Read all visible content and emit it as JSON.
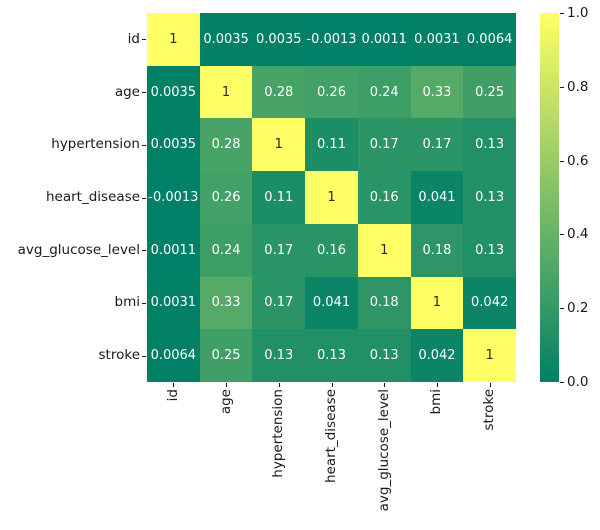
{
  "chart_data": {
    "type": "heatmap",
    "title": "",
    "xlabel": "",
    "ylabel": "",
    "labels": [
      "id",
      "age",
      "hypertension",
      "heart_disease",
      "avg_glucose_level",
      "bmi",
      "stroke"
    ],
    "matrix": [
      [
        1,
        0.0035,
        0.0035,
        -0.0013,
        0.0011,
        0.0031,
        0.0064
      ],
      [
        0.0035,
        1,
        0.28,
        0.26,
        0.24,
        0.33,
        0.25
      ],
      [
        0.0035,
        0.28,
        1,
        0.11,
        0.17,
        0.17,
        0.13
      ],
      [
        -0.0013,
        0.26,
        0.11,
        1,
        0.16,
        0.041,
        0.13
      ],
      [
        0.0011,
        0.24,
        0.17,
        0.16,
        1,
        0.18,
        0.13
      ],
      [
        0.0031,
        0.33,
        0.17,
        0.041,
        0.18,
        1,
        0.042
      ],
      [
        0.0064,
        0.25,
        0.13,
        0.13,
        0.13,
        0.042,
        1
      ]
    ],
    "annotations": [
      [
        "1",
        "0.0035",
        "0.0035",
        "-0.0013",
        "0.0011",
        "0.0031",
        "0.0064"
      ],
      [
        "0.0035",
        "1",
        "0.28",
        "0.26",
        "0.24",
        "0.33",
        "0.25"
      ],
      [
        "0.0035",
        "0.28",
        "1",
        "0.11",
        "0.17",
        "0.17",
        "0.13"
      ],
      [
        "-0.0013",
        "0.26",
        "0.11",
        "1",
        "0.16",
        "0.041",
        "0.13"
      ],
      [
        "0.0011",
        "0.24",
        "0.17",
        "0.16",
        "1",
        "0.18",
        "0.13"
      ],
      [
        "0.0031",
        "0.33",
        "0.17",
        "0.041",
        "0.18",
        "1",
        "0.042"
      ],
      [
        "0.0064",
        "0.25",
        "0.13",
        "0.13",
        "0.13",
        "0.042",
        "1"
      ]
    ],
    "colormap": {
      "name": "summer",
      "low": "#008066",
      "high": "#ffff66"
    },
    "annotation_colors": {
      "on_dark": "#ffffff",
      "on_light": "#262626"
    },
    "colorbar": {
      "position": "right",
      "ticks": [
        "1.0",
        "0.8",
        "0.6",
        "0.4",
        "0.2",
        "0.0"
      ],
      "range": [
        0.0,
        1.0
      ]
    },
    "grid": false
  }
}
